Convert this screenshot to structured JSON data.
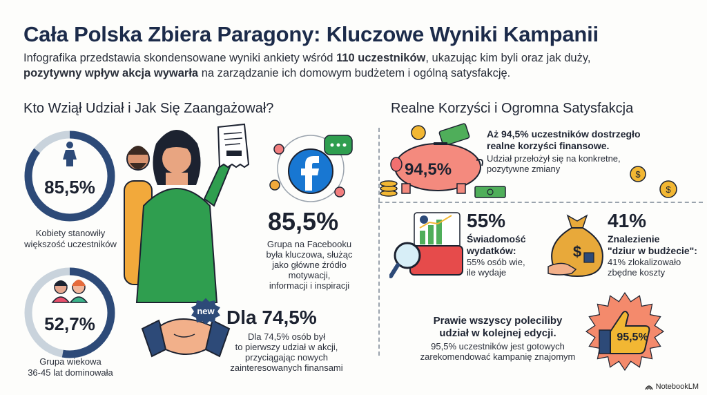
{
  "header": {
    "title": "Cała Polska Zbiera Paragony: Kluczowe Wyniki Kampanii",
    "intro_part1": "Infografika przedstawia skondensowane wyniki ankiety wśród ",
    "intro_bold1": "110 uczestników",
    "intro_part2": ", ukazując kim byli oraz jak duży,",
    "intro_bold2": "pozytywny wpływ akcja wywarła",
    "intro_part3": " na zarządzanie ich domowym budżetem i ogólną satysfakcję."
  },
  "left": {
    "section_title": "Kto Wziął Udział i Jak Się Zaangażował?",
    "women": {
      "value": "85,5%",
      "fraction": 0.855,
      "caption_line1": "Kobiety stanowiły",
      "caption_line2": "większość uczestników"
    },
    "age": {
      "value": "52,7%",
      "fraction": 0.527,
      "caption_line1": "Grupa wiekowa",
      "caption_line2": "36-45 lat dominowała"
    },
    "facebook": {
      "value": "85,5%",
      "line1": "Grupa na Facebooku",
      "line2": "była kluczowa, służąc",
      "line3": "jako główne źródło",
      "line4": "motywacji,",
      "line5": "informacji i inspiracji"
    },
    "new": {
      "badge": "new",
      "value": "Dla 74,5%",
      "line1": "Dla 74,5% osób był",
      "line2": "to pierwszy udział w akcji,",
      "line3": "przyciągając nowych",
      "line4": "zainteresowanych finansami"
    }
  },
  "right": {
    "section_title": "Realne Korzyści i Ogromna Satysfakcja",
    "benefit": {
      "value": "94,5%",
      "bold_line1": "Aż 94,5% uczestników dostrzegło",
      "bold_line2": "realne korzyści finansowe.",
      "line1": "Udział przełożył się na konkretne,",
      "line2": "pozytywne zmiany"
    },
    "awareness": {
      "value": "55%",
      "bold_line1": "Świadomość",
      "bold_line2": "wydatków:",
      "line1": "55% osób wie,",
      "line2": "ile wydaje"
    },
    "holes": {
      "value": "41%",
      "bold_line1": "Znalezienie",
      "bold_line2": "\"dziur w budżecie\":",
      "line1": "41% zlokalizowało",
      "line2": "zbędne koszty"
    },
    "recommend": {
      "value": "95,5%",
      "bold_line1": "Prawie wszyscy poleciliby",
      "bold_line2": "udział w kolejnej edycji.",
      "line1": "95,5% uczestników jest gotowych",
      "line2": "zarekomendować kampanię znajomym"
    }
  },
  "footer": {
    "brand": "NotebookLM"
  },
  "colors": {
    "navy": "#2d4a78",
    "ring_bg": "#c9d3dc",
    "green": "#2f9e4f",
    "pink": "#f27e7e",
    "gold": "#e8a93a",
    "starburst": "#f48a6c"
  }
}
